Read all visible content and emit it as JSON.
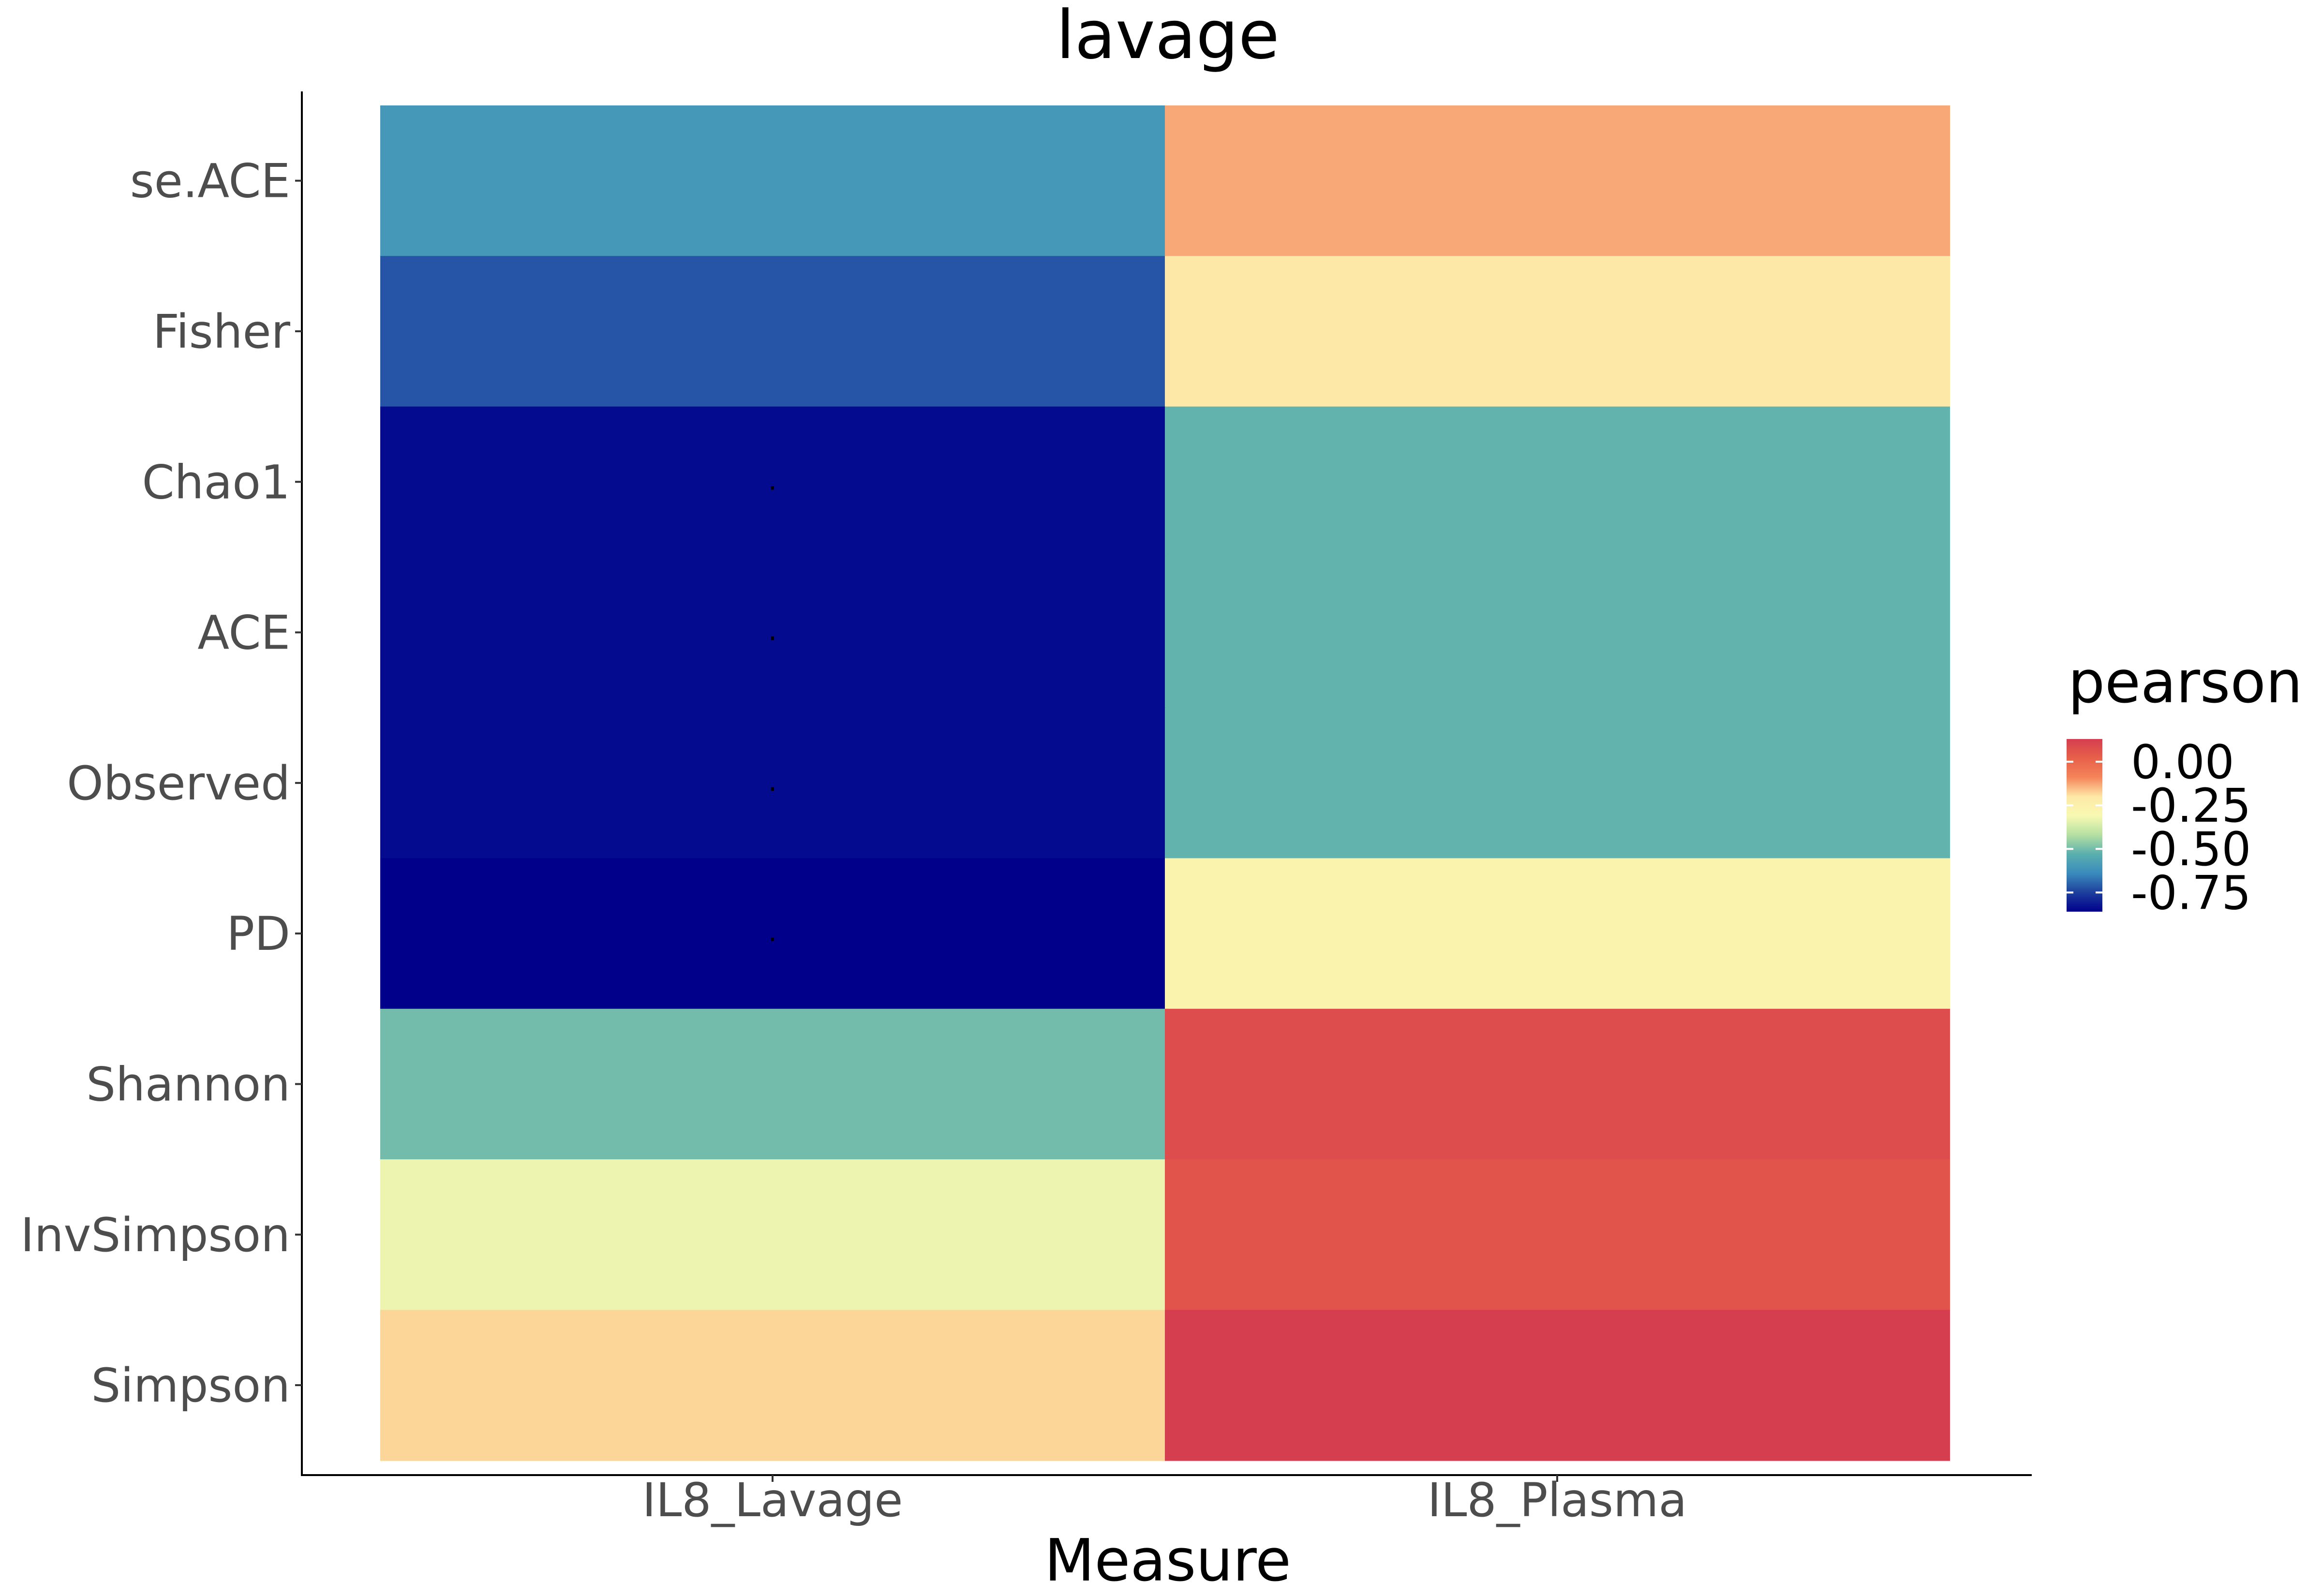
{
  "chart_data": {
    "type": "heatmap",
    "title": "lavage",
    "xlabel": "Measure",
    "ylabel": "",
    "x_categories": [
      "IL8_Lavage",
      "IL8_Plasma"
    ],
    "y_categories": [
      "se.ACE",
      "Fisher",
      "Chao1",
      "ACE",
      "Observed",
      "PD",
      "Shannon",
      "InvSimpson",
      "Simpson"
    ],
    "values": [
      [
        -0.6,
        -0.13
      ],
      [
        -0.72,
        -0.2
      ],
      [
        -0.84,
        -0.52
      ],
      [
        -0.84,
        -0.52
      ],
      [
        -0.84,
        -0.52
      ],
      [
        -0.86,
        -0.27
      ],
      [
        -0.5,
        0.08
      ],
      [
        -0.33,
        0.06
      ],
      [
        -0.18,
        0.13
      ]
    ],
    "significance_marks": [
      [
        "",
        ""
      ],
      [
        "",
        ""
      ],
      [
        ".",
        ""
      ],
      [
        ".",
        ""
      ],
      [
        ".",
        ""
      ],
      [
        ".",
        ""
      ],
      [
        "",
        ""
      ],
      [
        "",
        ""
      ],
      [
        "",
        ""
      ]
    ],
    "colorbar": {
      "title": "pearson",
      "ticks": [
        0.0,
        -0.25,
        -0.5,
        -0.75
      ],
      "tick_labels": [
        "0.00",
        "-0.25",
        "-0.50",
        "-0.75"
      ],
      "range": [
        -0.86,
        0.13
      ],
      "palette": [
        "#00008B",
        "#1E3F9D",
        "#3A8BBD",
        "#5AAFAE",
        "#B5E0A2",
        "#F8F9B2",
        "#FEE8A7",
        "#F4845A",
        "#E8604A",
        "#D53E4F"
      ],
      "placement": "right"
    },
    "grid": false
  }
}
